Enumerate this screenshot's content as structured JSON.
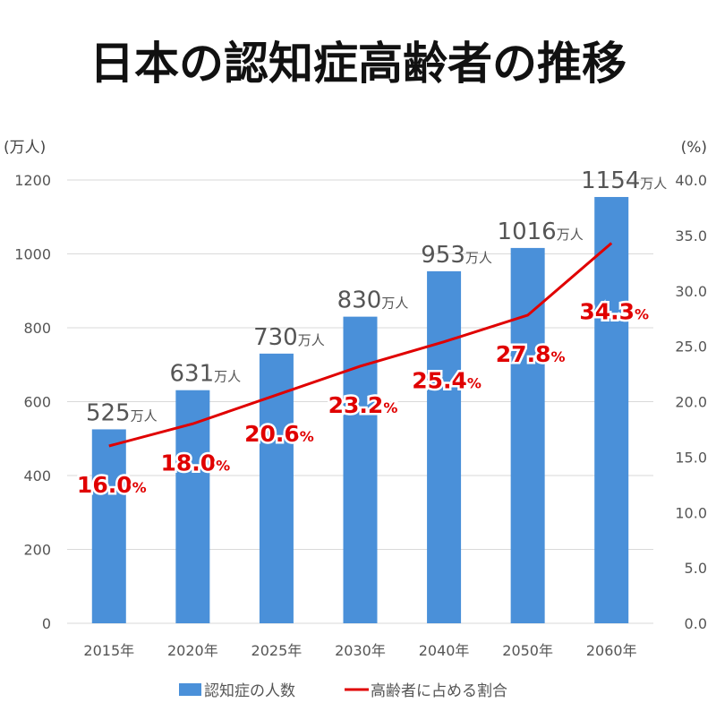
{
  "chart_data": {
    "type": "bar",
    "title": "日本の認知症高齢者の推移",
    "categories": [
      "2015年",
      "2020年",
      "2025年",
      "2030年",
      "2040年",
      "2050年",
      "2060年"
    ],
    "series": [
      {
        "name": "認知症の人数",
        "type": "bar",
        "axis": "left",
        "values": [
          525,
          631,
          730,
          830,
          953,
          1016,
          1154
        ],
        "value_unit": "万人",
        "color": "#4a90d9"
      },
      {
        "name": "高齢者に占める割合",
        "type": "line",
        "axis": "right",
        "values": [
          16.0,
          18.0,
          20.6,
          23.2,
          25.4,
          27.8,
          34.3
        ],
        "value_unit": "%",
        "color": "#e00000"
      }
    ],
    "left_axis": {
      "label": "(万人)",
      "ylim": [
        0,
        1200
      ],
      "ticks": [
        "0",
        "200",
        "400",
        "600",
        "800",
        "1000",
        "1200"
      ]
    },
    "right_axis": {
      "label": "(%)",
      "ylim": [
        0,
        40
      ],
      "ticks": [
        "0.0",
        "5.0",
        "10.0",
        "15.0",
        "20.0",
        "25.0",
        "30.0",
        "35.0",
        "40.0"
      ]
    },
    "grid": true,
    "legend": "bottom"
  }
}
